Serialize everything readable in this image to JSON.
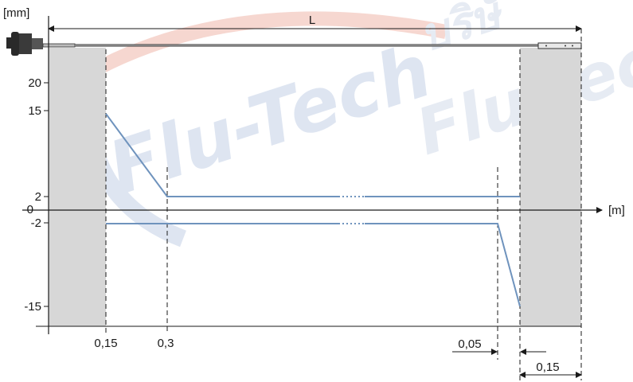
{
  "units": {
    "y_unit": "[mm]",
    "x_unit": "[m]"
  },
  "dimensions": {
    "length_label": "L",
    "left_zone": "0,15",
    "top_zone": "0,3",
    "right_step": "0,05",
    "right_zone": "0,15"
  },
  "y_ticks": [
    "20",
    "15",
    "2",
    "0",
    "-2",
    "-15"
  ],
  "watermark": {
    "brand": "Flu-Tech",
    "thai": "บริษั"
  },
  "colors": {
    "tolerance_line": "#6f93bd",
    "dead_zone": "#d7d7d7",
    "axis": "#1a1a1a",
    "watermark_red": "#f6d3cc",
    "watermark_blue": "#dbe3f0"
  },
  "chart_data": {
    "type": "line",
    "xlabel": "[m]",
    "ylabel": "[mm]",
    "series": [
      {
        "x": [
          0.15,
          0.3,
          "L-0.15"
        ],
        "y": [
          15,
          2,
          2
        ]
      },
      {
        "x": [
          0.15,
          "L-0.2",
          "L-0.15"
        ],
        "y": [
          -2,
          -2,
          -15
        ]
      }
    ]
  }
}
